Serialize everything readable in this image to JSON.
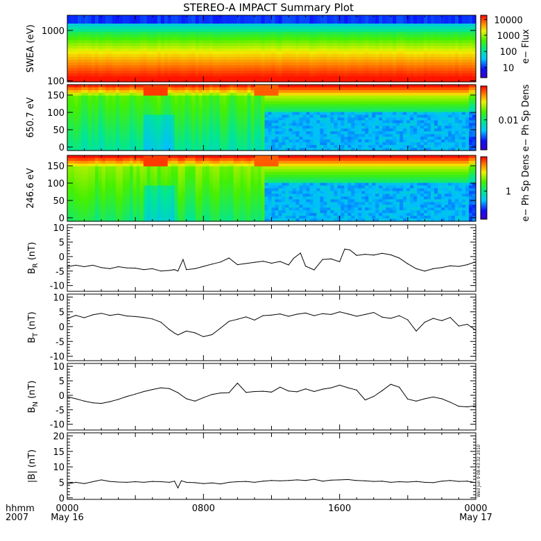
{
  "chart_data": {
    "title": "STEREO-A IMPACT Summary Plot",
    "x_corner_labels": [
      "hhmm",
      "2007"
    ],
    "x_ticks": [
      {
        "hour": 0,
        "time": "0000",
        "date": "May 16"
      },
      {
        "hour": 8,
        "time": "0800",
        "date": ""
      },
      {
        "hour": 16,
        "time": "1600",
        "date": ""
      },
      {
        "hour": 24,
        "time": "0000",
        "date": "May 17"
      }
    ],
    "x_range_hours": [
      0,
      24
    ],
    "spectrograms": [
      {
        "id": "swea",
        "type": "heatmap",
        "ylabel": "SWEA (eV)",
        "yscale": "log",
        "ylim": [
          95,
          2000
        ],
        "yticks": [
          {
            "value": 1000,
            "label": "1000"
          },
          {
            "value": 100,
            "label": "100"
          }
        ],
        "colorbar_label": "e− Flux",
        "colorbar_ticks": [
          {
            "label": "10000",
            "frac": 0.93
          },
          {
            "label": "1000",
            "frac": 0.68
          },
          {
            "label": "100",
            "frac": 0.42
          },
          {
            "label": "10",
            "frac": 0.16
          }
        ]
      },
      {
        "id": "pad650",
        "type": "heatmap",
        "ylabel": "650.7  eV",
        "ylim": [
          -10,
          180
        ],
        "yticks": [
          {
            "value": 150,
            "label": "150"
          },
          {
            "value": 100,
            "label": "100"
          },
          {
            "value": 50,
            "label": "50"
          },
          {
            "value": 0,
            "label": "0"
          }
        ],
        "colorbar_label": "e− Ph Sp Dens",
        "colorbar_ticks": [
          {
            "label": "0.01",
            "frac": 0.47
          }
        ],
        "dropout_hour": 11.5
      },
      {
        "id": "pad246",
        "type": "heatmap",
        "ylabel": "246.6  eV",
        "ylim": [
          -10,
          180
        ],
        "yticks": [
          {
            "value": 150,
            "label": "150"
          },
          {
            "value": 100,
            "label": "100"
          },
          {
            "value": 50,
            "label": "50"
          },
          {
            "value": 0,
            "label": "0"
          }
        ],
        "colorbar_label": "e− Ph Sp Dens",
        "colorbar_ticks": [
          {
            "label": "1",
            "frac": 0.45
          }
        ],
        "dropout_hour": 11.5
      }
    ],
    "line_panels": [
      {
        "id": "br",
        "type": "line",
        "ylabel": "B",
        "ylabel_sub": "R",
        "ylabel_unit": " (nT)",
        "ylim": [
          -12,
          11
        ],
        "yticks": [
          10,
          5,
          0,
          -5,
          -10
        ],
        "x": [
          0,
          0.5,
          1,
          1.5,
          2,
          2.5,
          3,
          3.5,
          4,
          4.5,
          5,
          5.5,
          6,
          6.3,
          6.5,
          6.8,
          7,
          7.5,
          8,
          8.5,
          9,
          9.5,
          10,
          10.5,
          11,
          11.5,
          12,
          12.5,
          13,
          13.3,
          13.7,
          14,
          14.5,
          15,
          15.5,
          16,
          16.3,
          16.6,
          17,
          17.5,
          18,
          18.5,
          19,
          19.5,
          20,
          20.5,
          21,
          21.5,
          22,
          22.5,
          23,
          23.5,
          24
        ],
        "values": [
          -3.5,
          -3,
          -3.5,
          -3,
          -3.8,
          -4.2,
          -3.5,
          -3.9,
          -4,
          -4.5,
          -4.2,
          -5,
          -4.8,
          -4.5,
          -5,
          -1,
          -4.5,
          -4.2,
          -3.4,
          -2.6,
          -1.9,
          -0.5,
          -2.8,
          -2.4,
          -2,
          -1.6,
          -2.3,
          -1.7,
          -2.9,
          -0.6,
          1.2,
          -3.3,
          -4.6,
          -1,
          -0.8,
          -1.8,
          2.6,
          2.3,
          0.4,
          0.8,
          0.5,
          1.1,
          0.6,
          -0.5,
          -2.5,
          -4.2,
          -5,
          -4.2,
          -3.8,
          -3.2,
          -3.4,
          -2.8,
          -1.8
        ]
      },
      {
        "id": "bt",
        "type": "line",
        "ylabel": "B",
        "ylabel_sub": "T",
        "ylabel_unit": " (nT)",
        "ylim": [
          -11.5,
          11
        ],
        "yticks": [
          10,
          5,
          0,
          -5,
          -10
        ],
        "x": [
          0,
          0.5,
          1,
          1.5,
          2,
          2.5,
          3,
          3.5,
          4,
          4.5,
          5,
          5.5,
          6,
          6.3,
          6.5,
          6.8,
          7,
          7.5,
          8,
          8.5,
          9,
          9.5,
          10,
          10.5,
          11,
          11.5,
          12,
          12.5,
          13,
          13.5,
          14,
          14.5,
          15,
          15.5,
          16,
          16.5,
          17,
          17.5,
          18,
          18.5,
          19,
          19.5,
          20,
          20.5,
          21,
          21.5,
          22,
          22.5,
          23,
          23.5,
          24
        ],
        "values": [
          2.7,
          3.8,
          3,
          4,
          4.5,
          3.8,
          4.2,
          3.6,
          3.4,
          3.1,
          2.6,
          1.5,
          -1,
          -2.2,
          -2.8,
          -2,
          -1.5,
          -2.1,
          -3.4,
          -2.7,
          -0.5,
          1.8,
          2.5,
          3.3,
          2.2,
          3.7,
          3.9,
          4.3,
          3.5,
          4.2,
          4.6,
          3.7,
          4.4,
          4.1,
          5,
          4.3,
          3.5,
          4.1,
          4.8,
          3.2,
          2.8,
          3.7,
          2.3,
          -1.5,
          1.5,
          2.8,
          2,
          3.1,
          0.2,
          0.8,
          -1.2
        ]
      },
      {
        "id": "bn",
        "type": "line",
        "ylabel": "B",
        "ylabel_sub": "N",
        "ylabel_unit": " (nT)",
        "ylim": [
          -12,
          11
        ],
        "yticks": [
          10,
          5,
          0,
          -5,
          -10
        ],
        "x": [
          0,
          0.5,
          1,
          1.5,
          2,
          2.5,
          3,
          3.5,
          4,
          4.5,
          5,
          5.5,
          6,
          6.5,
          7,
          7.5,
          8,
          8.5,
          9,
          9.5,
          10,
          10.5,
          11,
          11.5,
          12,
          12.5,
          13,
          13.5,
          14,
          14.5,
          15,
          15.5,
          16,
          16.5,
          17,
          17.5,
          18,
          18.5,
          19,
          19.5,
          20,
          20.5,
          21,
          21.5,
          22,
          22.5,
          23,
          23.5,
          24
        ],
        "values": [
          -0.5,
          -1.2,
          -2,
          -2.6,
          -2.8,
          -2.2,
          -1.4,
          -0.4,
          0.4,
          1.3,
          2,
          2.6,
          2.3,
          0.9,
          -1.2,
          -2,
          -0.8,
          0.3,
          0.8,
          0.9,
          4.2,
          1,
          1.3,
          1.4,
          1.1,
          2.8,
          1.5,
          1.2,
          2.2,
          1.3,
          2.1,
          2.6,
          3.5,
          2.6,
          1.8,
          -1.6,
          -0.4,
          1.6,
          3.8,
          2.8,
          -1.3,
          -2,
          -1.2,
          -0.6,
          -1.2,
          -2.4,
          -3.8,
          -4,
          -3.6
        ]
      },
      {
        "id": "bmag",
        "type": "line",
        "ylabel": "|B|",
        "ylabel_sub": "",
        "ylabel_unit": " (nT)",
        "ylim": [
          -0.5,
          21
        ],
        "yticks": [
          20,
          15,
          10,
          5,
          0
        ],
        "timestamp": "Wed Jun  9 08:43:32 2010",
        "x": [
          0,
          0.5,
          1,
          1.5,
          2,
          2.5,
          3,
          3.5,
          4,
          4.5,
          5,
          5.5,
          6,
          6.3,
          6.5,
          6.7,
          7,
          7.5,
          8,
          8.5,
          9,
          9.5,
          10,
          10.5,
          11,
          11.5,
          12,
          12.5,
          13,
          13.5,
          14,
          14.5,
          15,
          15.5,
          16,
          16.5,
          17,
          17.5,
          18,
          18.5,
          19,
          19.5,
          20,
          20.5,
          21,
          21.5,
          22,
          22.5,
          23,
          23.5,
          24
        ],
        "values": [
          4.5,
          5,
          4.6,
          5.2,
          5.8,
          5.3,
          5.1,
          5,
          5.2,
          5,
          5.3,
          5.2,
          5,
          5.4,
          3.2,
          5.5,
          5,
          4.9,
          4.6,
          4.8,
          4.5,
          5,
          5.2,
          5.3,
          5,
          5.4,
          5.6,
          5.5,
          5.6,
          5.8,
          5.6,
          6,
          5.4,
          5.7,
          5.8,
          5.9,
          5.6,
          5.5,
          5.3,
          5.4,
          5,
          5.2,
          5.1,
          5.3,
          5,
          4.9,
          5.4,
          5.6,
          5.3,
          5.4,
          4.9
        ]
      }
    ]
  }
}
